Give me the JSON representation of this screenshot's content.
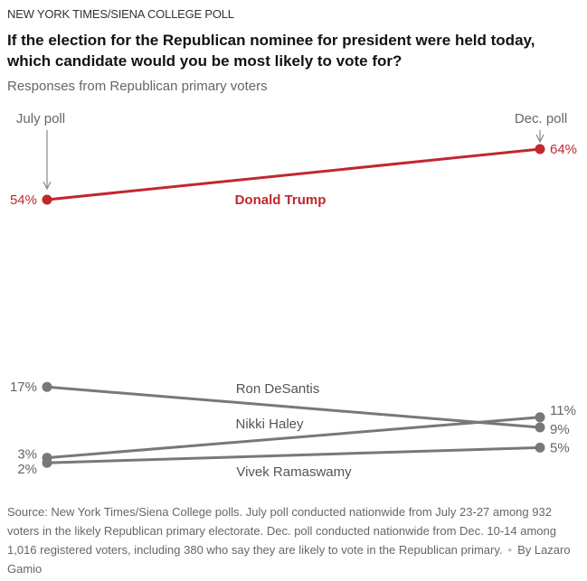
{
  "kicker": "NEW YORK TIMES/SIENA COLLEGE POLL",
  "title": "If the election for the Republican nominee for president were held today, which candidate would you be most likely to vote for?",
  "subtitle": "Responses from Republican primary voters",
  "chart_data": {
    "type": "line",
    "subtype": "slope",
    "x": [
      "July poll",
      "Dec. poll"
    ],
    "ylim": [
      0,
      64
    ],
    "series": [
      {
        "name": "Donald Trump",
        "values": [
          54,
          64
        ],
        "labels": [
          "54%",
          "64%"
        ],
        "color": "#c1272d"
      },
      {
        "name": "Ron DeSantis",
        "values": [
          17,
          9
        ],
        "labels": [
          "17%",
          "9%"
        ],
        "color": "#787878"
      },
      {
        "name": "Nikki Haley",
        "values": [
          3,
          11
        ],
        "labels": [
          "3%",
          "11%"
        ],
        "color": "#787878"
      },
      {
        "name": "Vivek Ramaswamy",
        "values": [
          2,
          5
        ],
        "labels": [
          "2%",
          "5%"
        ],
        "color": "#787878"
      }
    ]
  },
  "footer": {
    "source": "Source: New York Times/Siena College polls. July poll conducted nationwide from July 23-27 among 932 voters in the likely Republican primary electorate. Dec. poll conducted nationwide from Dec. 10-14 among 1,016 registered voters, including 380 who say they are likely to vote in the Republican primary.",
    "byline": "By Lazaro Gamio"
  }
}
